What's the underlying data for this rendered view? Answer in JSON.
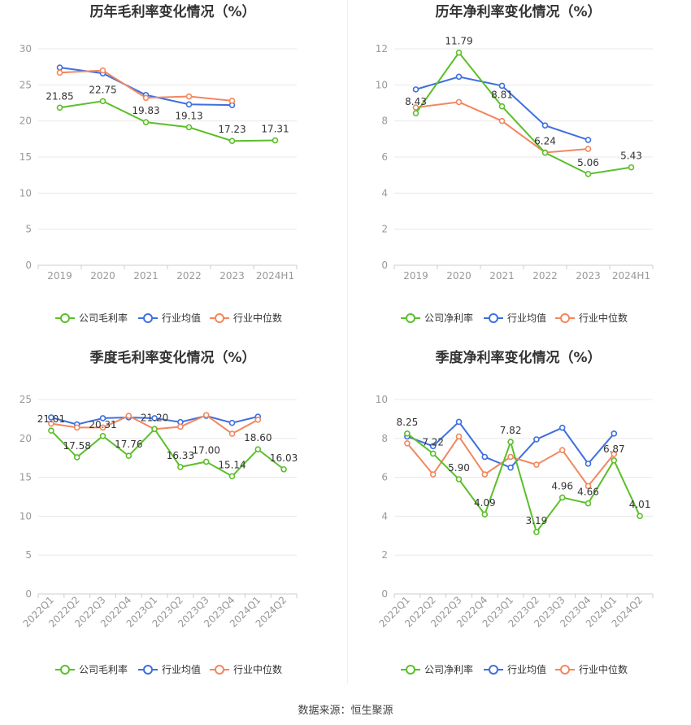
{
  "colors": {
    "company": "#5bbf2a",
    "avg": "#3f6fe0",
    "median": "#f2875f",
    "grid": "#e8e8e8",
    "axis": "#999999",
    "text": "#333333"
  },
  "legend_labels": {
    "gross": [
      "公司毛利率",
      "行业均值",
      "行业中位数"
    ],
    "net": [
      "公司净利率",
      "行业均值",
      "行业中位数"
    ]
  },
  "source_text": "数据来源：恒生聚源",
  "chart_data": [
    {
      "type": "line",
      "title": "历年毛利率变化情况（%）",
      "categories": [
        "2019",
        "2020",
        "2021",
        "2022",
        "2023",
        "2024H1"
      ],
      "ylim": [
        0,
        30
      ],
      "yticks": [
        0,
        5,
        10,
        15,
        20,
        25,
        30
      ],
      "legend_position": "bottom",
      "grid": true,
      "series": [
        {
          "name": "公司毛利率",
          "values": [
            21.85,
            22.75,
            19.83,
            19.13,
            17.23,
            17.31
          ],
          "labeled": true
        },
        {
          "name": "行业均值",
          "values": [
            27.4,
            26.6,
            23.6,
            22.3,
            22.2,
            null
          ]
        },
        {
          "name": "行业中位数",
          "values": [
            26.7,
            27.0,
            23.2,
            23.4,
            22.8,
            null
          ]
        }
      ]
    },
    {
      "type": "line",
      "title": "历年净利率变化情况（%）",
      "categories": [
        "2019",
        "2020",
        "2021",
        "2022",
        "2023",
        "2024H1"
      ],
      "ylim": [
        0,
        12
      ],
      "yticks": [
        0,
        2,
        4,
        6,
        8,
        10,
        12
      ],
      "legend_position": "bottom",
      "grid": true,
      "series": [
        {
          "name": "公司净利率",
          "values": [
            8.43,
            11.79,
            8.81,
            6.24,
            5.06,
            5.43
          ],
          "labeled": true
        },
        {
          "name": "行业均值",
          "values": [
            9.75,
            10.45,
            9.95,
            7.75,
            6.95,
            null
          ]
        },
        {
          "name": "行业中位数",
          "values": [
            8.75,
            9.05,
            8.0,
            6.25,
            6.45,
            null
          ]
        }
      ]
    },
    {
      "type": "line",
      "title": "季度毛利率变化情况（%）",
      "categories": [
        "2022Q1",
        "2022Q2",
        "2022Q3",
        "2022Q4",
        "2023Q1",
        "2023Q2",
        "2023Q3",
        "2023Q4",
        "2024Q1",
        "2024Q2"
      ],
      "ylim": [
        0,
        25
      ],
      "yticks": [
        0,
        5,
        10,
        15,
        20,
        25
      ],
      "legend_position": "bottom",
      "grid": true,
      "series": [
        {
          "name": "公司毛利率",
          "values": [
            21.01,
            17.58,
            20.31,
            17.76,
            21.2,
            16.33,
            17.0,
            15.14,
            18.6,
            16.03
          ],
          "labeled": true
        },
        {
          "name": "行业均值",
          "values": [
            22.7,
            21.8,
            22.6,
            22.7,
            22.6,
            22.1,
            22.9,
            22.0,
            22.8,
            null
          ]
        },
        {
          "name": "行业中位数",
          "values": [
            21.9,
            21.4,
            21.4,
            22.9,
            21.2,
            21.5,
            23.0,
            20.6,
            22.4,
            null
          ]
        }
      ]
    },
    {
      "type": "line",
      "title": "季度净利率变化情况（%）",
      "categories": [
        "2022Q1",
        "2022Q2",
        "2022Q3",
        "2022Q4",
        "2023Q1",
        "2023Q2",
        "2023Q3",
        "2023Q4",
        "2024Q1",
        "2024Q2"
      ],
      "ylim": [
        0,
        10
      ],
      "yticks": [
        0,
        2,
        4,
        6,
        8,
        10
      ],
      "legend_position": "bottom",
      "grid": true,
      "series": [
        {
          "name": "公司净利率",
          "values": [
            8.25,
            7.22,
            5.9,
            4.09,
            7.82,
            3.19,
            4.96,
            4.66,
            6.87,
            4.01
          ],
          "labeled": true
        },
        {
          "name": "行业均值",
          "values": [
            8.1,
            7.6,
            8.85,
            7.05,
            6.5,
            7.95,
            8.55,
            6.7,
            8.25,
            null
          ]
        },
        {
          "name": "行业中位数",
          "values": [
            7.75,
            6.15,
            8.1,
            6.15,
            7.05,
            6.65,
            7.4,
            5.55,
            7.2,
            null
          ]
        }
      ]
    }
  ]
}
